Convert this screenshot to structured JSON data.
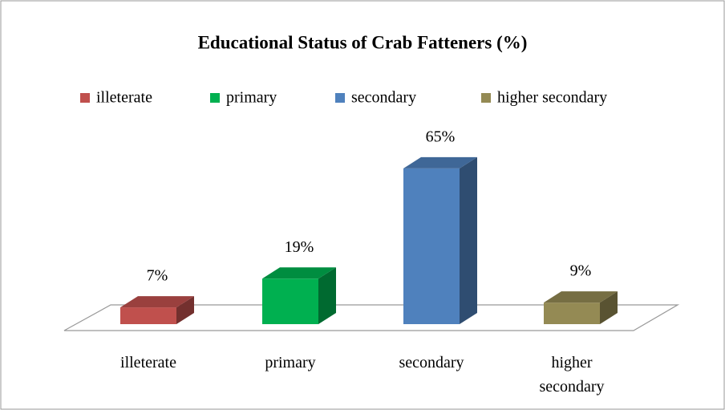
{
  "chart_data": {
    "type": "bar3d",
    "title": "Educational Status of Crab Fatteners (%)",
    "categories": [
      "illeterate",
      "primary",
      "secondary",
      "higher secondary"
    ],
    "values": [
      7,
      19,
      65,
      9
    ],
    "value_labels": [
      "7%",
      "19%",
      "65%",
      "9%"
    ],
    "colors": [
      "#c0504d",
      "#00b050",
      "#4f81bd",
      "#948a54"
    ],
    "ylim": [
      0,
      70
    ],
    "legend": "top"
  }
}
